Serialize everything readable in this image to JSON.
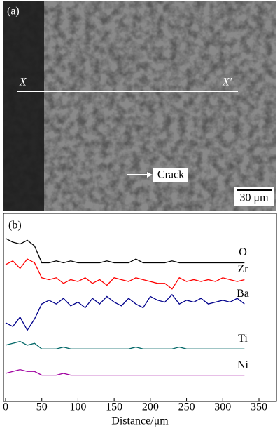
{
  "image": {
    "label": "(a)",
    "start": "X",
    "end": "X′",
    "annotation": "Crack",
    "scale_bar": "30 μm"
  },
  "chart_data": {
    "type": "line",
    "panel_label": "(b)",
    "xlabel": "Distance/μm",
    "x": [
      0,
      10,
      20,
      30,
      40,
      50,
      60,
      70,
      80,
      90,
      100,
      110,
      120,
      130,
      140,
      150,
      160,
      170,
      180,
      190,
      200,
      210,
      220,
      230,
      240,
      250,
      260,
      270,
      280,
      290,
      300,
      310,
      320,
      330
    ],
    "xlim": [
      0,
      350
    ],
    "xticks": [
      0,
      50,
      100,
      150,
      200,
      250,
      300,
      350
    ],
    "ylim": [
      0,
      100
    ],
    "series": [
      {
        "name": "O",
        "color": "#000000",
        "values": [
          87,
          85,
          84,
          86,
          83,
          74,
          74,
          75,
          74,
          75,
          74,
          74,
          74,
          74,
          75,
          74,
          74,
          74,
          76,
          74,
          74,
          74,
          74,
          75,
          74,
          74,
          74,
          74,
          74,
          74,
          74,
          74,
          74,
          74
        ]
      },
      {
        "name": "Zr",
        "color": "#ff0000",
        "values": [
          73,
          75,
          71,
          76,
          74,
          66,
          65,
          66,
          63,
          65,
          64,
          66,
          63,
          65,
          62,
          66,
          65,
          64,
          66,
          65,
          64,
          63,
          63,
          60,
          66,
          64,
          65,
          64,
          65,
          64,
          66,
          65,
          64,
          65
        ]
      },
      {
        "name": "Ba",
        "color": "#00008b",
        "values": [
          42,
          40,
          45,
          38,
          44,
          52,
          54,
          52,
          55,
          51,
          53,
          50,
          55,
          52,
          56,
          53,
          51,
          55,
          52,
          50,
          56,
          54,
          53,
          57,
          52,
          54,
          53,
          55,
          52,
          53,
          54,
          53,
          55,
          52
        ]
      },
      {
        "name": "Ti",
        "color": "#006666",
        "values": [
          30,
          31,
          32,
          30,
          31,
          28,
          28,
          28,
          29,
          28,
          28,
          28,
          28,
          28,
          28,
          28,
          28,
          28,
          29,
          28,
          28,
          28,
          28,
          28,
          29,
          28,
          28,
          28,
          28,
          28,
          28,
          28,
          28,
          28
        ]
      },
      {
        "name": "Ni",
        "color": "#a000a0",
        "values": [
          15,
          16,
          17,
          16,
          16,
          14,
          14,
          14,
          15,
          14,
          14,
          14,
          14,
          14,
          14,
          14,
          14,
          14,
          14,
          14,
          14,
          14,
          14,
          14,
          14,
          14,
          14,
          14,
          14,
          14,
          14,
          14,
          14,
          14
        ]
      }
    ]
  }
}
